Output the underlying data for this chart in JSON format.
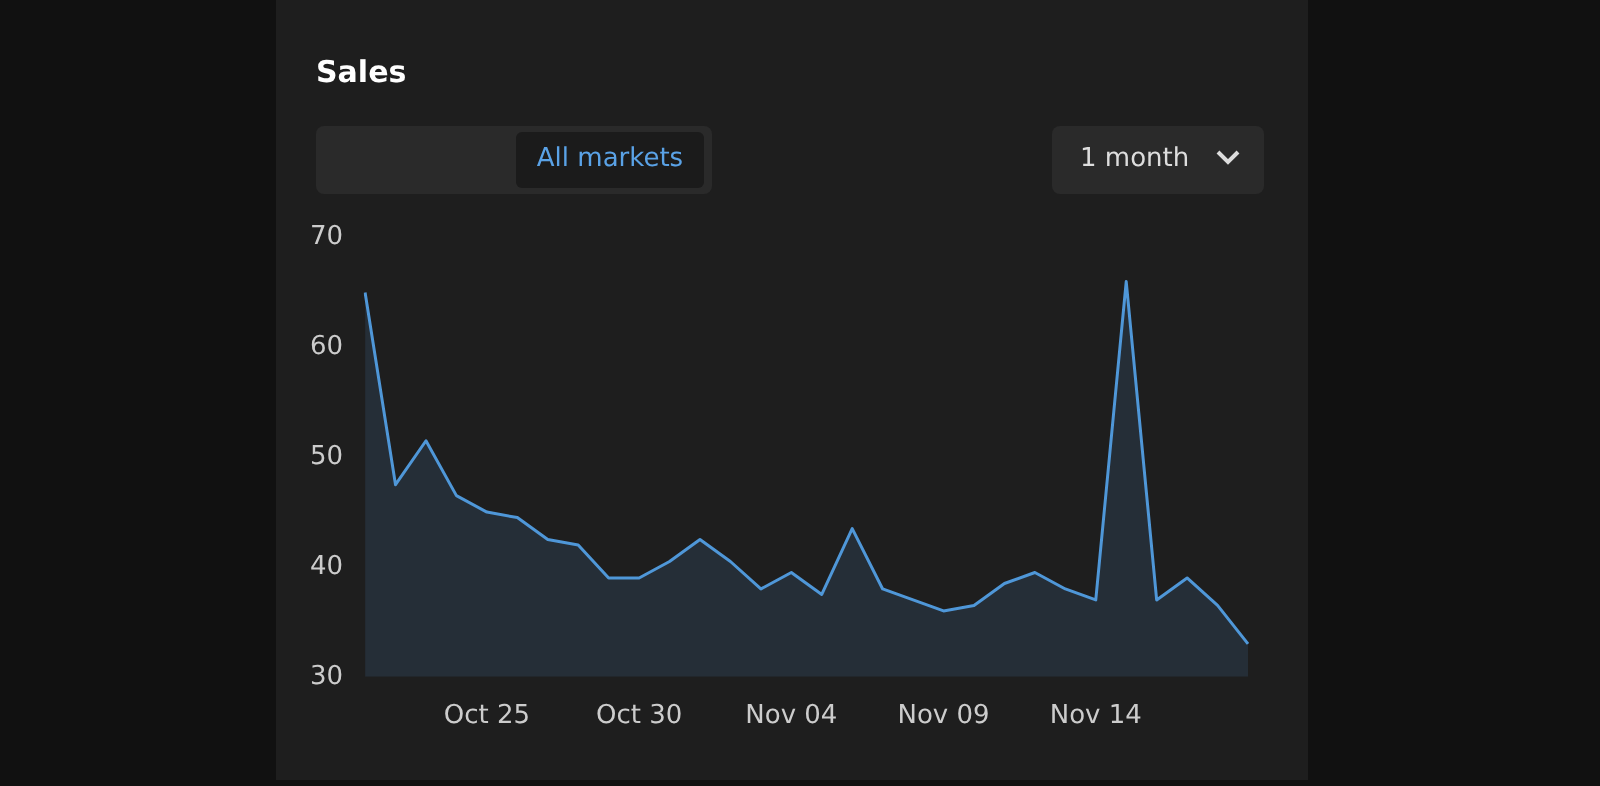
{
  "chart_data": {
    "type": "area",
    "title": "Sales",
    "annotations": [
      "All markets",
      "1 month"
    ],
    "categories": [
      null,
      null,
      null,
      null,
      "Oct 25",
      null,
      null,
      null,
      null,
      "Oct 30",
      null,
      null,
      null,
      null,
      "Nov 04",
      null,
      null,
      null,
      null,
      "Nov 09",
      null,
      null,
      null,
      null,
      "Nov 14",
      null,
      null,
      null,
      null,
      null
    ],
    "series": [
      {
        "color": "#4f97d8",
        "values": [
          65,
          47.5,
          51.5,
          46.5,
          45,
          44.5,
          42.5,
          42,
          39,
          39,
          40.5,
          42.5,
          40.5,
          38,
          39.5,
          37.5,
          43.5,
          38,
          37,
          36,
          36.5,
          38.5,
          39.5,
          38,
          37,
          66,
          37,
          39,
          36.5,
          33
        ]
      }
    ],
    "ylim": [
      30,
      70
    ],
    "yticks": [
      30,
      40,
      50,
      60,
      70
    ],
    "grid": false,
    "legend": false,
    "marker": "none"
  }
}
